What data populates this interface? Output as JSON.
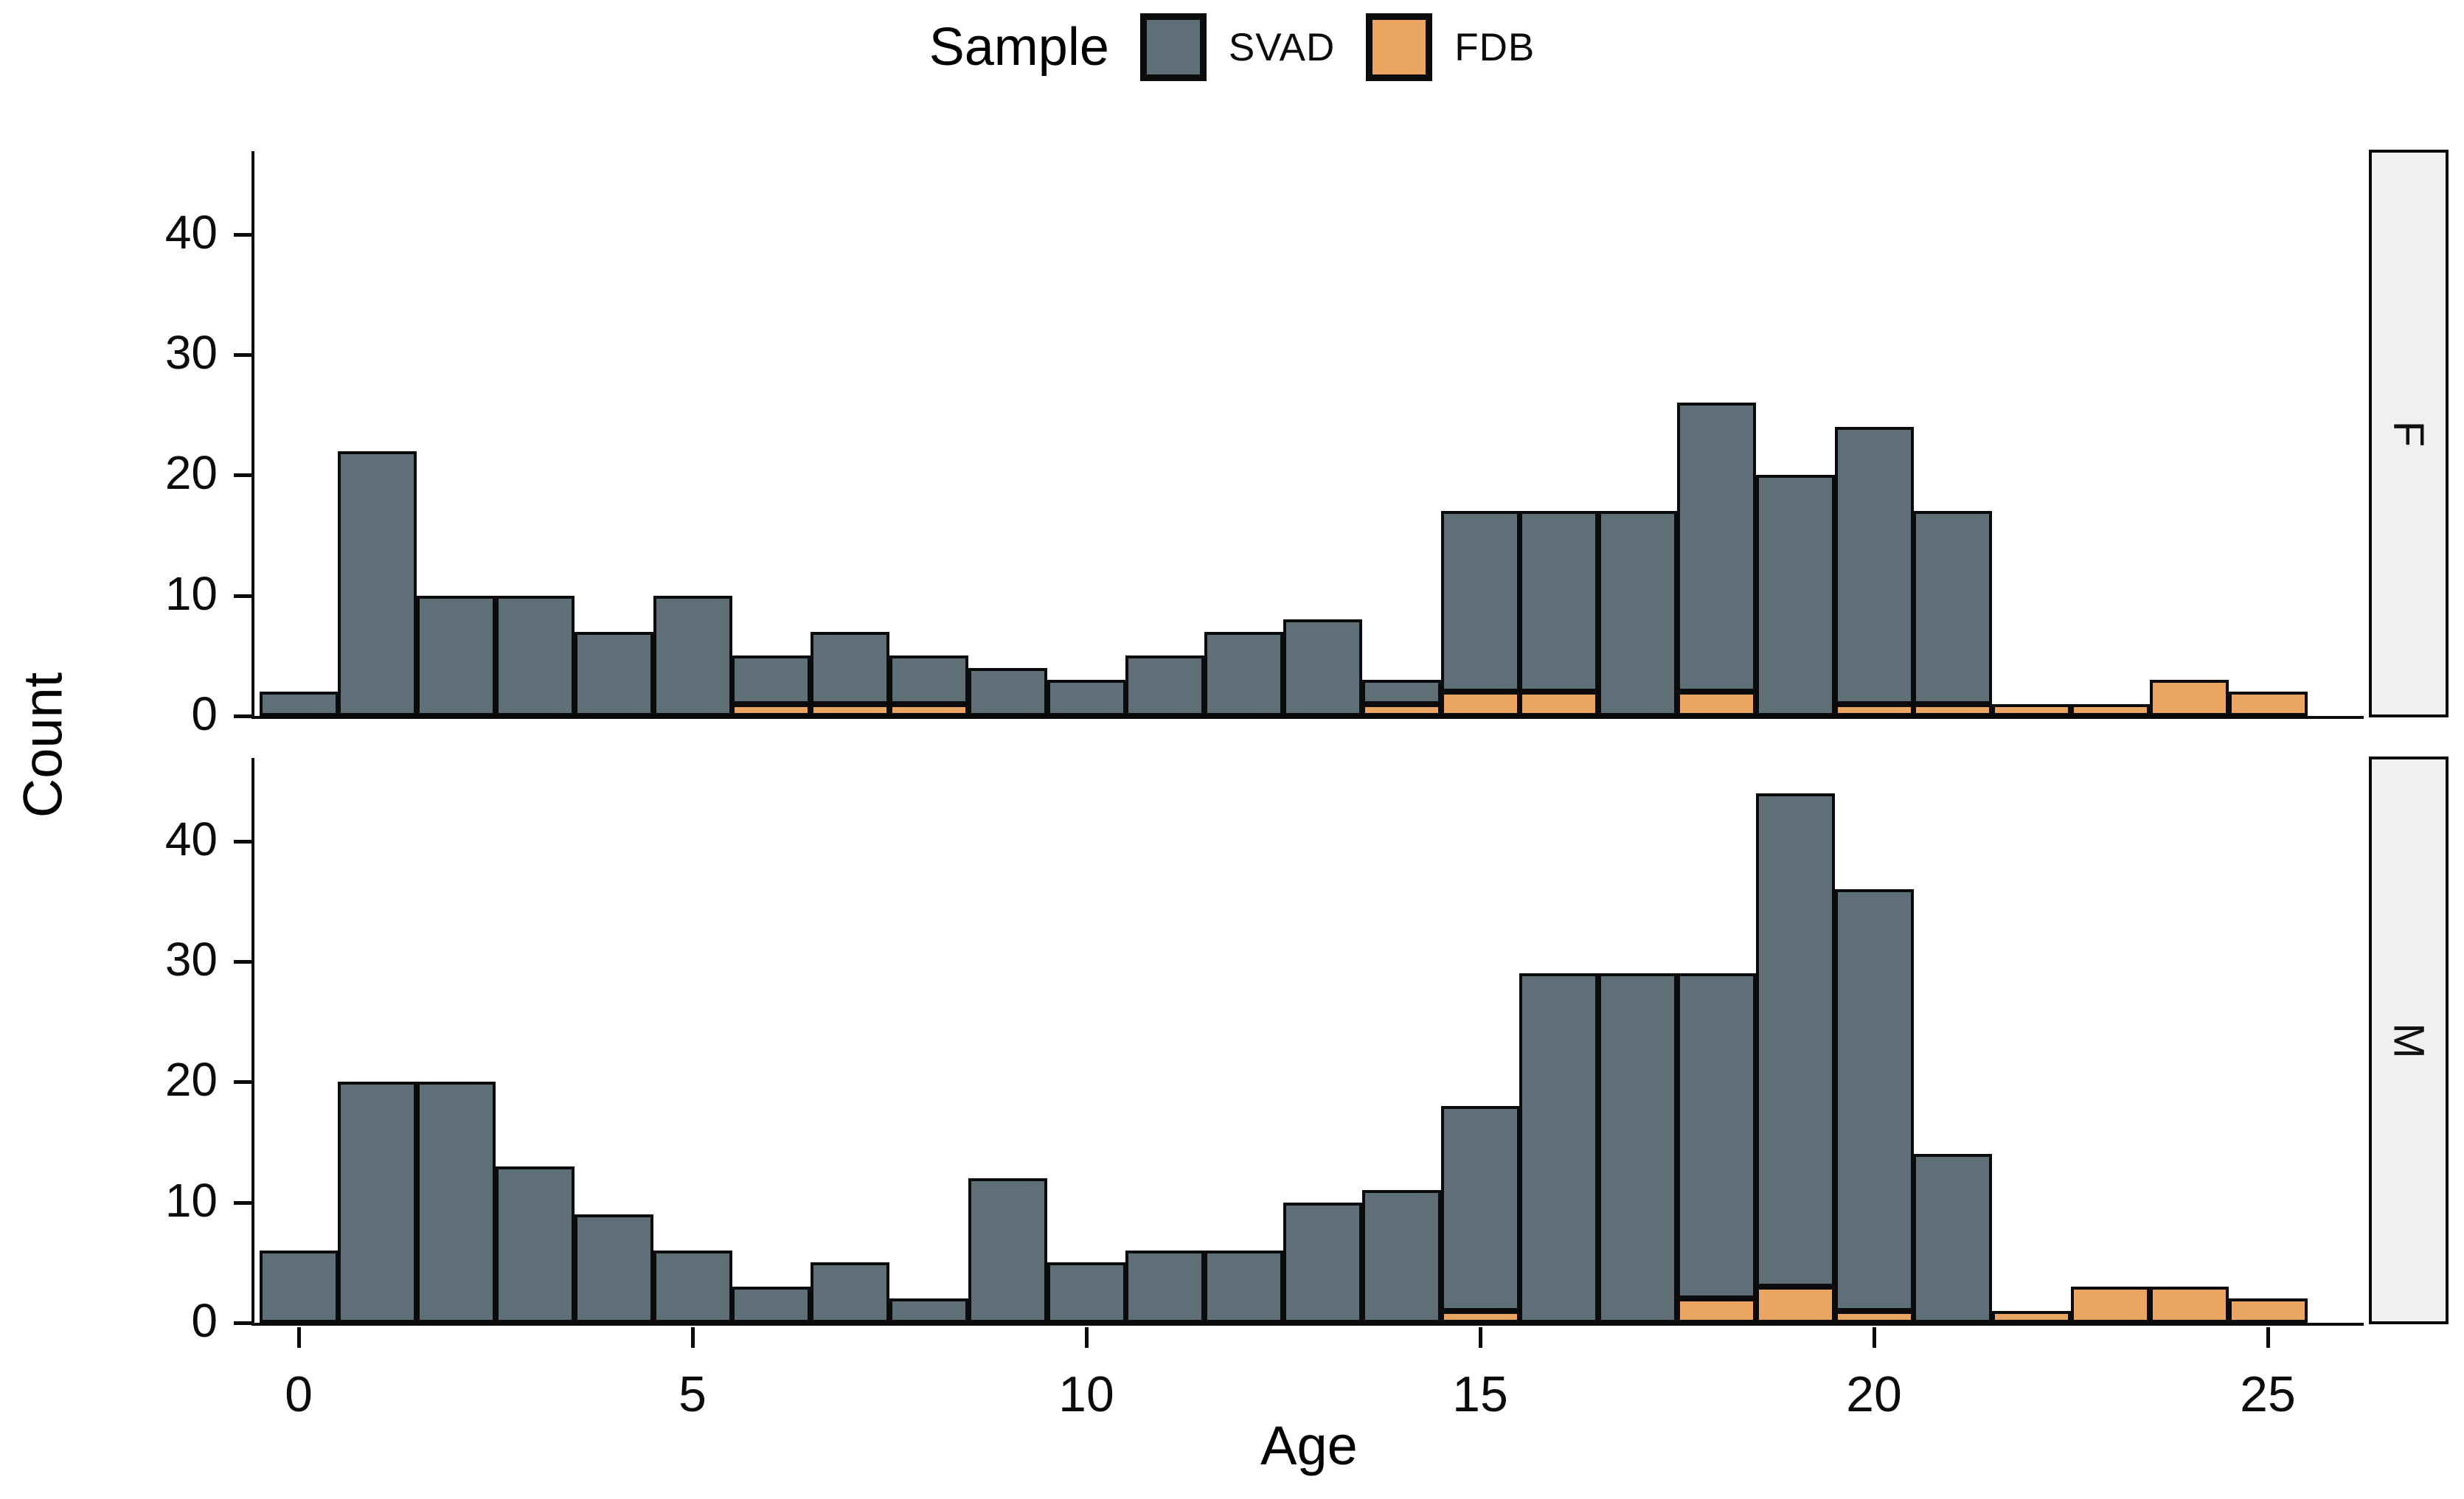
{
  "legend": {
    "title": "Sample",
    "series": [
      {
        "name": "SVAD",
        "color": "#5e6f78"
      },
      {
        "name": "FDB",
        "color": "#e9a561"
      }
    ]
  },
  "axes": {
    "x_label": "Age",
    "y_label": "Count"
  },
  "chart_data": {
    "type": "bar",
    "subtype": "faceted-stacked-histogram",
    "title": "",
    "xlabel": "Age",
    "ylabel": "Count",
    "bin_width": 1,
    "ages": [
      0,
      1,
      2,
      3,
      4,
      5,
      6,
      7,
      8,
      9,
      10,
      11,
      12,
      13,
      14,
      15,
      16,
      17,
      18,
      19,
      20,
      21,
      22,
      23,
      24,
      25
    ],
    "x_ticks": [
      0,
      5,
      10,
      15,
      20,
      25
    ],
    "y_ticks": [
      0,
      10,
      20,
      30,
      40
    ],
    "x_range": [
      -0.5,
      25.5
    ],
    "y_range": [
      0,
      46.9
    ],
    "legend_position": "top",
    "grid": false,
    "stack_order_bottom_first": [
      "FDB",
      "SVAD"
    ],
    "facets": [
      {
        "label": "F",
        "series": [
          {
            "name": "SVAD",
            "color": "#5e6f78",
            "values": [
              2,
              22,
              10,
              10,
              7,
              10,
              4,
              6,
              4,
              4,
              3,
              5,
              7,
              8,
              2,
              15,
              15,
              17,
              24,
              20,
              23,
              16,
              0,
              0,
              0,
              0
            ]
          },
          {
            "name": "FDB",
            "color": "#e9a561",
            "values": [
              0,
              0,
              0,
              0,
              0,
              0,
              1,
              1,
              1,
              0,
              0,
              0,
              0,
              0,
              1,
              2,
              2,
              0,
              2,
              0,
              1,
              1,
              1,
              1,
              3,
              2
            ]
          }
        ]
      },
      {
        "label": "M",
        "series": [
          {
            "name": "SVAD",
            "color": "#5e6f78",
            "values": [
              6,
              20,
              20,
              13,
              9,
              6,
              3,
              5,
              2,
              12,
              5,
              6,
              6,
              10,
              11,
              17,
              29,
              29,
              27,
              41,
              35,
              14,
              0,
              0,
              0,
              0
            ]
          },
          {
            "name": "FDB",
            "color": "#e9a561",
            "values": [
              0,
              0,
              0,
              0,
              0,
              0,
              0,
              0,
              0,
              0,
              0,
              0,
              0,
              0,
              0,
              1,
              0,
              0,
              2,
              3,
              1,
              0,
              1,
              3,
              3,
              2
            ]
          }
        ]
      }
    ]
  }
}
